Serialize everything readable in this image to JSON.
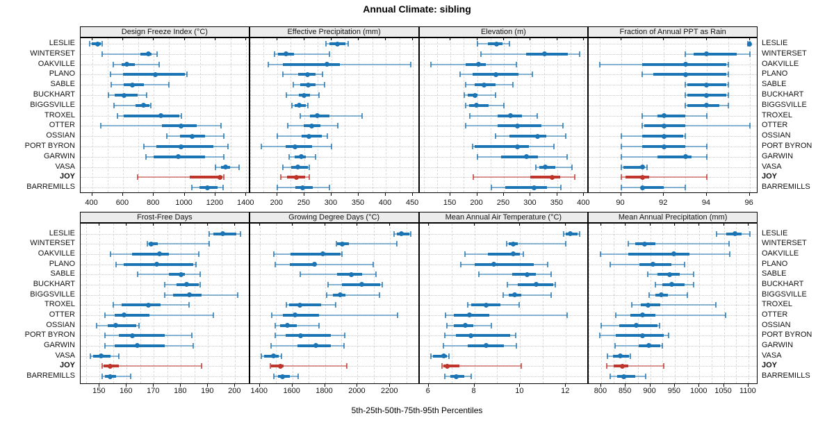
{
  "title": "Annual Climate: sibling",
  "caption": "5th-25th-50th-75th-95th Percentiles",
  "stations": [
    "LESLIE",
    "WINTERSET",
    "OAKVILLE",
    "PLANO",
    "SABLE",
    "BUCKHART",
    "BIGGSVILLE",
    "TROXEL",
    "OTTER",
    "OSSIAN",
    "PORT BYRON",
    "GARWIN",
    "VASA",
    "JOY",
    "BARREMILLS"
  ],
  "highlight_station": "JOY",
  "colors": {
    "series": "#1b74b4",
    "highlight": "#bf352c",
    "strip_bg": "#ececec",
    "grid_v": "#d9d9d9",
    "grid_h": "#c9c9c9",
    "border": "#000000"
  },
  "chart_data": [
    {
      "type": "dotplot-percentiles",
      "title": "Design Freeze Index (°C)",
      "xlim": [
        325,
        1425
      ],
      "ticks": [
        400,
        600,
        800,
        1000,
        1200,
        1400
      ],
      "minor": 100,
      "values": [
        [
          385,
          395,
          435,
          455,
          465
        ],
        [
          465,
          715,
          765,
          785,
          820
        ],
        [
          535,
          590,
          625,
          675,
          835
        ],
        [
          520,
          600,
          810,
          1000,
          1015
        ],
        [
          525,
          605,
          660,
          735,
          900
        ],
        [
          505,
          545,
          605,
          695,
          755
        ],
        [
          540,
          680,
          735,
          770,
          780
        ],
        [
          565,
          605,
          845,
          965,
          980
        ],
        [
          455,
          855,
          975,
          1080,
          1235
        ],
        [
          885,
          970,
          1050,
          1135,
          1255
        ],
        [
          735,
          815,
          975,
          1185,
          1280
        ],
        [
          750,
          800,
          960,
          1135,
          1255
        ],
        [
          1200,
          1235,
          1265,
          1295,
          1355
        ],
        [
          695,
          1035,
          1230,
          1245,
          1255
        ],
        [
          1045,
          1095,
          1150,
          1215,
          1250
        ]
      ]
    },
    {
      "type": "dotplot-percentiles",
      "title": "Effective Precipitation (mm)",
      "xlim": [
        150,
        462
      ],
      "ticks": [
        200,
        250,
        300,
        350,
        400,
        450
      ],
      "minor": 25,
      "values": [
        [
          290,
          296,
          311,
          326,
          331
        ],
        [
          195,
          201,
          216,
          231,
          296
        ],
        [
          184,
          211,
          292,
          316,
          446
        ],
        [
          211,
          239,
          256,
          271,
          283
        ],
        [
          230,
          243,
          257,
          271,
          287
        ],
        [
          217,
          240,
          249,
          261,
          277
        ],
        [
          227,
          232,
          240,
          253,
          257
        ],
        [
          243,
          260,
          274,
          296,
          356
        ],
        [
          220,
          249,
          264,
          279,
          311
        ],
        [
          200,
          245,
          259,
          282,
          293
        ],
        [
          171,
          215,
          233,
          264,
          300
        ],
        [
          222,
          232,
          244,
          253,
          270
        ],
        [
          211,
          226,
          238,
          256,
          259
        ],
        [
          207,
          218,
          235,
          251,
          259
        ],
        [
          200,
          234,
          247,
          266,
          296
        ]
      ]
    },
    {
      "type": "dotplot-percentiles",
      "title": "Elevation (m)",
      "xlim": [
        92,
        409
      ],
      "ticks": [
        150,
        200,
        250,
        300,
        350,
        400
      ],
      "minor": 25,
      "values": [
        [
          200,
          220,
          237,
          248,
          261
        ],
        [
          207,
          292,
          326,
          370,
          392
        ],
        [
          113,
          178,
          202,
          216,
          274
        ],
        [
          168,
          191,
          235,
          277,
          303
        ],
        [
          178,
          195,
          213,
          234,
          267
        ],
        [
          176,
          182,
          196,
          200,
          234
        ],
        [
          179,
          185,
          198,
          221,
          250
        ],
        [
          186,
          238,
          263,
          284,
          313
        ],
        [
          178,
          238,
          276,
          320,
          360
        ],
        [
          235,
          260,
          313,
          330,
          366
        ],
        [
          192,
          196,
          275,
          297,
          344
        ],
        [
          201,
          245,
          292,
          314,
          368
        ],
        [
          310,
          316,
          328,
          346,
          378
        ],
        [
          193,
          300,
          341,
          356,
          383
        ],
        [
          226,
          253,
          306,
          330,
          357
        ]
      ]
    },
    {
      "type": "dotplot-percentiles",
      "title": "Fraction of Annual PPT as Rain",
      "xlim": [
        88.5,
        96.4
      ],
      "ticks": [
        90,
        92,
        94,
        96
      ],
      "minor": 1,
      "values": [
        [
          95.9,
          95.9,
          96,
          96,
          96
        ],
        [
          93,
          93.4,
          94,
          95.4,
          96
        ],
        [
          89,
          91,
          93,
          94.9,
          95
        ],
        [
          91,
          91.5,
          93,
          94.9,
          95
        ],
        [
          93,
          93.1,
          94,
          94.9,
          95
        ],
        [
          93,
          93.1,
          94,
          94.9,
          95
        ],
        [
          93,
          93.1,
          94,
          94.6,
          95
        ],
        [
          91,
          91.7,
          92,
          93,
          94
        ],
        [
          91,
          91.1,
          92,
          93,
          96
        ],
        [
          90,
          91,
          92,
          92.9,
          93
        ],
        [
          90,
          91,
          92,
          93,
          94
        ],
        [
          90,
          91.7,
          93,
          93.3,
          94
        ],
        [
          90,
          90.1,
          91,
          91.1,
          91.2
        ],
        [
          90,
          90.2,
          91,
          91.3,
          94
        ],
        [
          90,
          91,
          91,
          92,
          93
        ]
      ]
    },
    {
      "type": "dotplot-percentiles",
      "title": "Frost-Free Days",
      "xlim": [
        143,
        205.5
      ],
      "ticks": [
        150,
        160,
        170,
        180,
        190,
        200
      ],
      "minor": 5,
      "values": [
        [
          190.5,
          192,
          195.5,
          200.5,
          202
        ],
        [
          167.5,
          168,
          169,
          171.5,
          190.5
        ],
        [
          154,
          162,
          172,
          175.5,
          186.5
        ],
        [
          156,
          159,
          171,
          184.5,
          185.5
        ],
        [
          164,
          175.5,
          180,
          181.5,
          187
        ],
        [
          174,
          178.5,
          182,
          186.5,
          187
        ],
        [
          174,
          177,
          183,
          187.5,
          201
        ],
        [
          155,
          158,
          168,
          172.5,
          183
        ],
        [
          152,
          155.5,
          159,
          168.5,
          192
        ],
        [
          149,
          153,
          156,
          163.5,
          164.5
        ],
        [
          152,
          157,
          162,
          174,
          184
        ],
        [
          152,
          155.5,
          164,
          174,
          184.5
        ],
        [
          146.5,
          147.5,
          150.5,
          154,
          157
        ],
        [
          151,
          151.5,
          154,
          157,
          187.5
        ],
        [
          151,
          152,
          154,
          156,
          161.5
        ]
      ]
    },
    {
      "type": "dotplot-percentiles",
      "title": "Growing Degree Days (°C)",
      "xlim": [
        1340,
        2380
      ],
      "ticks": [
        1400,
        1600,
        1800,
        2000,
        2200
      ],
      "minor": 100,
      "values": [
        [
          2225,
          2240,
          2270,
          2320,
          2325
        ],
        [
          1870,
          1875,
          1905,
          1945,
          2240
        ],
        [
          1485,
          1590,
          1785,
          1895,
          1905
        ],
        [
          1495,
          1585,
          1735,
          1745,
          2095
        ],
        [
          1650,
          1875,
          1960,
          2030,
          2115
        ],
        [
          1820,
          1905,
          2025,
          2140,
          2150
        ],
        [
          1810,
          1850,
          1895,
          1925,
          2135
        ],
        [
          1565,
          1580,
          1645,
          1775,
          1865
        ],
        [
          1475,
          1540,
          1615,
          1765,
          2245
        ],
        [
          1495,
          1525,
          1570,
          1625,
          1765
        ],
        [
          1495,
          1560,
          1650,
          1835,
          1920
        ],
        [
          1470,
          1630,
          1745,
          1835,
          1915
        ],
        [
          1410,
          1425,
          1485,
          1515,
          1535
        ],
        [
          1465,
          1470,
          1525,
          1545,
          1935
        ],
        [
          1485,
          1510,
          1540,
          1585,
          1635
        ]
      ]
    },
    {
      "type": "dotplot-percentiles",
      "title": "Mean Annual Air Temperature (°C)",
      "xlim": [
        5.6,
        13.0
      ],
      "ticks": [
        6,
        8,
        10,
        12
      ],
      "minor": 1,
      "values": [
        [
          11.9,
          12.0,
          12.2,
          12.5,
          12.6
        ],
        [
          9.4,
          9.5,
          9.7,
          9.9,
          12.0
        ],
        [
          7.6,
          8.6,
          9.7,
          10.0,
          10.15
        ],
        [
          7.4,
          8.0,
          8.85,
          10.6,
          11.2
        ],
        [
          8.2,
          9.65,
          10.3,
          10.7,
          11.35
        ],
        [
          9.45,
          9.9,
          10.7,
          11.45,
          11.55
        ],
        [
          9.25,
          9.5,
          9.75,
          10.05,
          11.35
        ],
        [
          7.7,
          7.85,
          8.5,
          9.15,
          9.95
        ],
        [
          6.75,
          7.1,
          7.8,
          8.65,
          12.05
        ],
        [
          6.8,
          7.1,
          7.6,
          7.95,
          8.75
        ],
        [
          6.7,
          7.2,
          7.85,
          9.55,
          9.8
        ],
        [
          6.65,
          7.7,
          8.5,
          9.3,
          9.85
        ],
        [
          6.1,
          6.2,
          6.65,
          6.8,
          6.9
        ],
        [
          6.6,
          6.65,
          6.8,
          7.35,
          10.05
        ],
        [
          6.7,
          6.95,
          7.2,
          7.55,
          7.85
        ]
      ]
    },
    {
      "type": "dotplot-percentiles",
      "title": "Mean Annual Precipitation (mm)",
      "xlim": [
        775,
        1120
      ],
      "ticks": [
        800,
        850,
        900,
        950,
        1000,
        1050,
        1100
      ],
      "minor": 25,
      "values": [
        [
          1035,
          1055,
          1072,
          1086,
          1103
        ],
        [
          856,
          870,
          889,
          910,
          1060
        ],
        [
          798,
          855,
          948,
          980,
          1062
        ],
        [
          818,
          878,
          905,
          943,
          970
        ],
        [
          895,
          915,
          940,
          960,
          989
        ],
        [
          910,
          924,
          944,
          970,
          989
        ],
        [
          898,
          910,
          922,
          936,
          975
        ],
        [
          862,
          881,
          895,
          920,
          1034
        ],
        [
          830,
          860,
          884,
          911,
          1053
        ],
        [
          800,
          837,
          871,
          915,
          919
        ],
        [
          797,
          830,
          884,
          928,
          937
        ],
        [
          829,
          876,
          897,
          920,
          924
        ],
        [
          813,
          824,
          839,
          857,
          859
        ],
        [
          812,
          826,
          843,
          855,
          928
        ],
        [
          818,
          833,
          846,
          870,
          891
        ]
      ]
    }
  ]
}
